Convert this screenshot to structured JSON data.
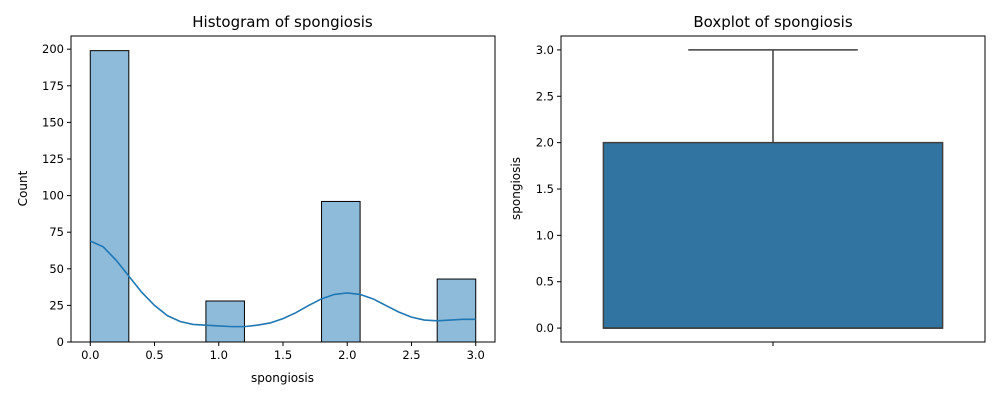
{
  "chart_data": [
    {
      "type": "bar",
      "title": "Histogram of spongiosis",
      "xlabel": "spongiosis",
      "ylabel": "Count",
      "xlim": [
        -0.15,
        3.15
      ],
      "ylim": [
        0,
        209
      ],
      "xticks": [
        0.0,
        0.5,
        1.0,
        1.5,
        2.0,
        2.5,
        3.0
      ],
      "xtick_labels": [
        "0.0",
        "0.5",
        "1.0",
        "1.5",
        "2.0",
        "2.5",
        "3.0"
      ],
      "yticks": [
        0,
        25,
        50,
        75,
        100,
        125,
        150,
        175,
        200
      ],
      "ytick_labels": [
        "0",
        "25",
        "50",
        "75",
        "100",
        "125",
        "150",
        "175",
        "200"
      ],
      "bins": [
        {
          "x0": 0.0,
          "x1": 0.3,
          "count": 199
        },
        {
          "x0": 0.3,
          "x1": 0.6,
          "count": 0
        },
        {
          "x0": 0.6,
          "x1": 0.9,
          "count": 0
        },
        {
          "x0": 0.9,
          "x1": 1.2,
          "count": 28
        },
        {
          "x0": 1.2,
          "x1": 1.5,
          "count": 0
        },
        {
          "x0": 1.5,
          "x1": 1.8,
          "count": 0
        },
        {
          "x0": 1.8,
          "x1": 2.1,
          "count": 96
        },
        {
          "x0": 2.1,
          "x1": 2.4,
          "count": 0
        },
        {
          "x0": 2.4,
          "x1": 2.7,
          "count": 0
        },
        {
          "x0": 2.7,
          "x1": 3.0,
          "count": 43
        }
      ],
      "kde": [
        [
          0.0,
          69
        ],
        [
          0.1,
          65
        ],
        [
          0.2,
          56
        ],
        [
          0.3,
          45
        ],
        [
          0.4,
          34
        ],
        [
          0.5,
          25
        ],
        [
          0.6,
          18
        ],
        [
          0.7,
          14
        ],
        [
          0.8,
          12
        ],
        [
          0.9,
          11.5
        ],
        [
          1.0,
          11
        ],
        [
          1.1,
          10.5
        ],
        [
          1.2,
          10.5
        ],
        [
          1.3,
          11.5
        ],
        [
          1.4,
          13
        ],
        [
          1.5,
          16
        ],
        [
          1.6,
          20
        ],
        [
          1.7,
          25
        ],
        [
          1.8,
          29.5
        ],
        [
          1.9,
          32.5
        ],
        [
          2.0,
          33.5
        ],
        [
          2.1,
          32.5
        ],
        [
          2.2,
          29.5
        ],
        [
          2.3,
          25
        ],
        [
          2.4,
          20.5
        ],
        [
          2.5,
          17
        ],
        [
          2.6,
          15
        ],
        [
          2.7,
          14.5
        ],
        [
          2.8,
          15
        ],
        [
          2.9,
          15.5
        ],
        [
          3.0,
          15.5
        ]
      ],
      "colors": {
        "bar_fill": "#8fbbdb",
        "bar_edge": "#000000",
        "kde_line": "#1f77b4"
      },
      "grid": false
    },
    {
      "type": "box",
      "title": "Boxplot of spongiosis",
      "xlabel": "",
      "ylabel": "spongiosis",
      "ylim": [
        -0.15,
        3.15
      ],
      "yticks": [
        0.0,
        0.5,
        1.0,
        1.5,
        2.0,
        2.5,
        3.0
      ],
      "ytick_labels": [
        "0.0",
        "0.5",
        "1.0",
        "1.5",
        "2.0",
        "2.5",
        "3.0"
      ],
      "box": {
        "min": 0.0,
        "q1": 0.0,
        "median": 0.0,
        "q3": 2.0,
        "max": 3.0
      },
      "colors": {
        "box_fill": "#3274a1",
        "line": "#3f3f3f"
      },
      "grid": false
    }
  ]
}
